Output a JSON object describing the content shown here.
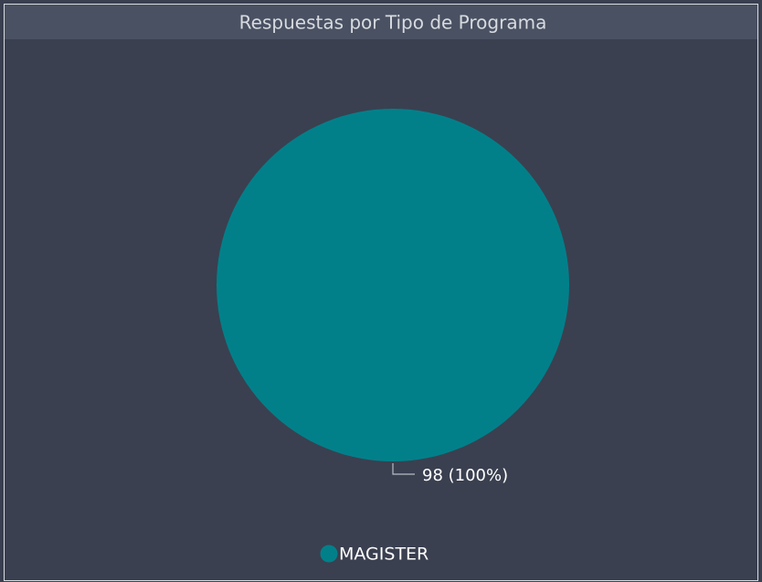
{
  "chart_data": {
    "type": "pie",
    "title": "Respuestas por Tipo de Programa",
    "categories": [
      "MAGISTER"
    ],
    "values": [
      98
    ],
    "value_labels": [
      "98 (100%)"
    ],
    "colors": [
      "#02808a"
    ],
    "legend": "bottom"
  }
}
